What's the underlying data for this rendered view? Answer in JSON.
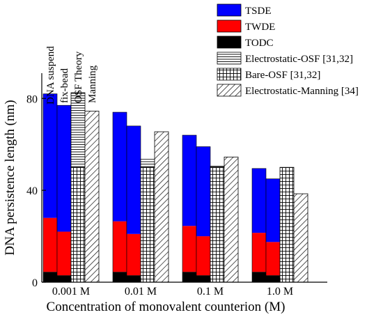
{
  "chart_data": {
    "type": "bar",
    "stacked_measurements": true,
    "xlabel": "Concentration of monovalent counterion (M)",
    "ylabel": "DNA persistence length (nm)",
    "ylim": [
      0,
      91
    ],
    "yticks": [
      0,
      40,
      80
    ],
    "categories": [
      "0.001 M",
      "0.01 M",
      "0.1 M",
      "1.0 M"
    ],
    "bar_slot_labels": [
      "DNA suspend",
      "fix-bead",
      "OSF Theory",
      "Manning"
    ],
    "legend": {
      "position": "top-right",
      "entries": [
        {
          "label": "TSDE",
          "pattern": "solid-blue"
        },
        {
          "label": "TWDE",
          "pattern": "solid-red"
        },
        {
          "label": "TODC",
          "pattern": "solid-black"
        },
        {
          "label": "Electrostatic-OSF [31,32]",
          "pattern": "horizontal-lines"
        },
        {
          "label": "Bare-OSF [31,32]",
          "pattern": "grid"
        },
        {
          "label": "Electrostatic-Manning [34]",
          "pattern": "diagonal"
        }
      ]
    },
    "measured": [
      {
        "category": "0.001 M",
        "setup": "DNA suspend",
        "TODC": 4.5,
        "TWDE": 23.5,
        "TSDE": 54
      },
      {
        "category": "0.001 M",
        "setup": "fix-bead",
        "TODC": 3,
        "TWDE": 19,
        "TSDE": 55
      },
      {
        "category": "0.01 M",
        "setup": "DNA suspend",
        "TODC": 4.5,
        "TWDE": 22,
        "TSDE": 47.5
      },
      {
        "category": "0.01 M",
        "setup": "fix-bead",
        "TODC": 3,
        "TWDE": 18,
        "TSDE": 47
      },
      {
        "category": "0.1 M",
        "setup": "DNA suspend",
        "TODC": 4.5,
        "TWDE": 20,
        "TSDE": 39.5
      },
      {
        "category": "0.1 M",
        "setup": "fix-bead",
        "TODC": 3,
        "TWDE": 17,
        "TSDE": 39
      },
      {
        "category": "1.0 M",
        "setup": "DNA suspend",
        "TODC": 4.5,
        "TWDE": 17,
        "TSDE": 28
      },
      {
        "category": "1.0 M",
        "setup": "fix-bead",
        "TODC": 3,
        "TWDE": 14.5,
        "TSDE": 27.5
      }
    ],
    "theory_osf": [
      {
        "category": "0.001 M",
        "bare": 50,
        "electrostatic": 32.5
      },
      {
        "category": "0.01 M",
        "bare": 50,
        "electrostatic": 3.5
      },
      {
        "category": "0.1 M",
        "bare": 50,
        "electrostatic": 0.5
      },
      {
        "category": "1.0 M",
        "bare": 50,
        "electrostatic": 0
      }
    ],
    "manning": [
      {
        "category": "0.001 M",
        "value": 74.5
      },
      {
        "category": "0.01 M",
        "value": 65.5
      },
      {
        "category": "0.1 M",
        "value": 54.5
      },
      {
        "category": "1.0 M",
        "value": 38.5
      }
    ]
  }
}
